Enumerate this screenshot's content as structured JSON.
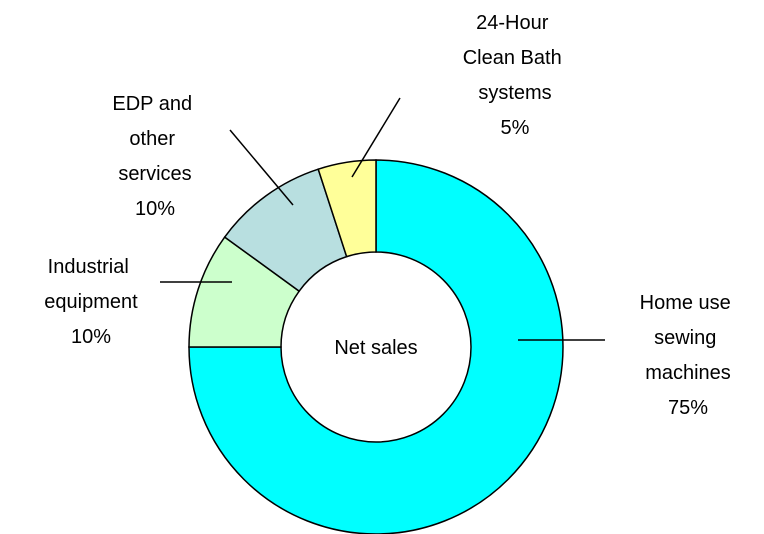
{
  "chart_data": {
    "type": "donut",
    "title": "Net sales",
    "categories": [
      "Home use sewing machines",
      "Industrial equipment",
      "EDP and other services",
      "24-Hour Clean Bath systems"
    ],
    "values": [
      75,
      10,
      10,
      5
    ],
    "value_labels": [
      "75%",
      "10%",
      "10%",
      "5%"
    ],
    "colors": [
      "#00ffff",
      "#ccffcc",
      "#b8dfe0",
      "#ffff99"
    ]
  }
}
